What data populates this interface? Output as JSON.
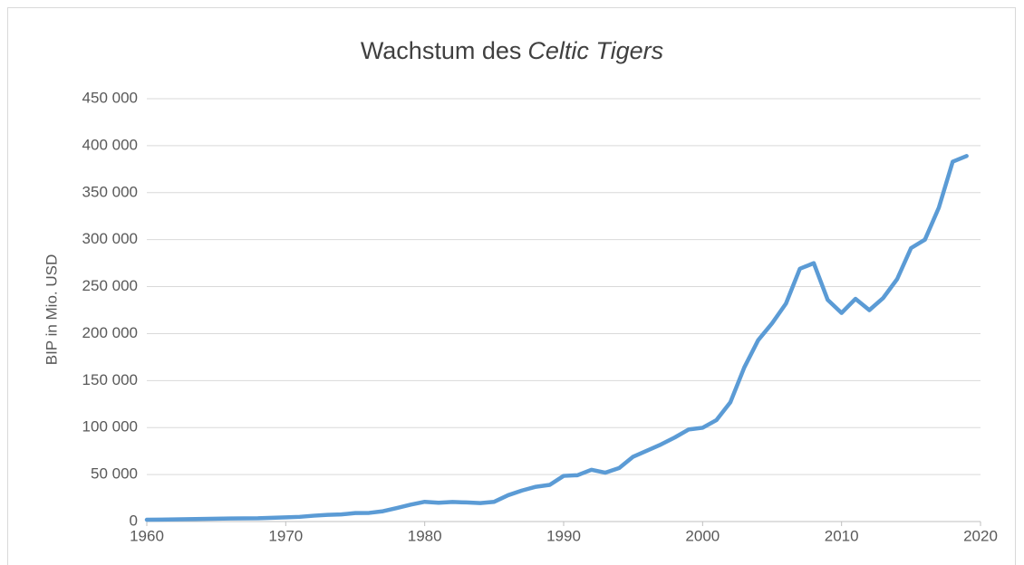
{
  "chart_data": {
    "type": "line",
    "title": [
      "Wachstum des",
      "Celtic Tigers"
    ],
    "y_label": "BIP in Mio. USD",
    "x": [
      1960,
      1961,
      1962,
      1963,
      1964,
      1965,
      1966,
      1967,
      1968,
      1969,
      1970,
      1971,
      1972,
      1973,
      1974,
      1975,
      1976,
      1977,
      1978,
      1979,
      1980,
      1981,
      1982,
      1983,
      1984,
      1985,
      1986,
      1987,
      1988,
      1989,
      1990,
      1991,
      1992,
      1993,
      1994,
      1995,
      1996,
      1997,
      1998,
      1999,
      2000,
      2001,
      2002,
      2003,
      2004,
      2005,
      2006,
      2007,
      2008,
      2009,
      2010,
      2011,
      2012,
      2013,
      2014,
      2015,
      2016,
      2017,
      2018,
      2019
    ],
    "series": [
      {
        "color": "#5b9bd5",
        "values": [
          1900,
          2100,
          2300,
          2500,
          2800,
          3000,
          3200,
          3400,
          3500,
          4000,
          4400,
          5000,
          6200,
          7100,
          7600,
          9000,
          9200,
          11000,
          14400,
          18000,
          21000,
          20000,
          20800,
          20300,
          19600,
          21000,
          28000,
          33000,
          37000,
          39000,
          48600,
          49300,
          55100,
          52000,
          57000,
          69000,
          75500,
          82000,
          89500,
          98000,
          99800,
          108000,
          127000,
          164000,
          193000,
          211000,
          232000,
          269000,
          275000,
          236000,
          222000,
          237000,
          225000,
          238000,
          258000,
          291000,
          300000,
          334000,
          383000,
          389000
        ]
      }
    ],
    "xlim": [
      1960,
      2020
    ],
    "xticks": [
      1960,
      1970,
      1980,
      1990,
      2000,
      2010,
      2020
    ],
    "ylim": [
      0,
      450000
    ],
    "yticks": [
      0,
      {
        "value": 50000,
        "label": "50 000"
      },
      {
        "value": 100000,
        "label": "100 000"
      },
      {
        "value": 150000,
        "label": "150 000"
      },
      {
        "value": 200000,
        "label": "200 000"
      },
      {
        "value": 250000,
        "label": "250 000"
      },
      {
        "value": 300000,
        "label": "300 000"
      },
      {
        "value": 350000,
        "label": "350 000"
      },
      {
        "value": 400000,
        "label": "400 000"
      },
      {
        "value": 450000,
        "label": "450 000"
      }
    ],
    "grid": true
  }
}
